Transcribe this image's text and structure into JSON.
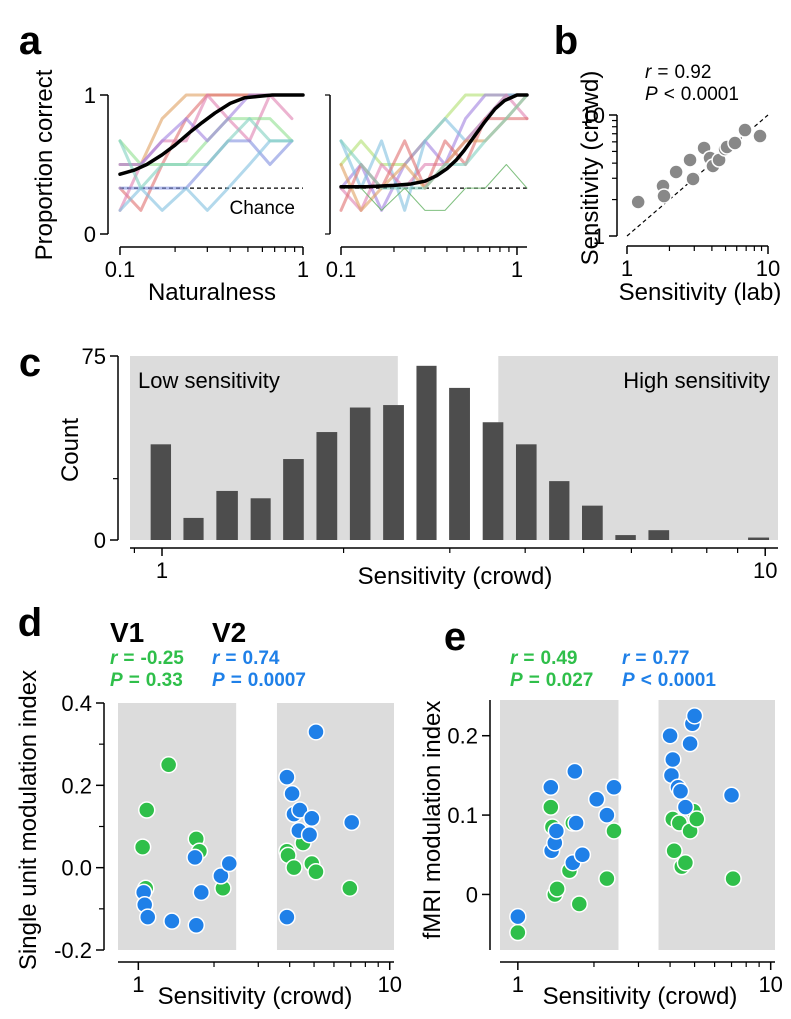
{
  "chart_data": [
    {
      "type": "line",
      "label": "a",
      "ylabel": "Proportion correct",
      "xlabel": "Naturalness",
      "xscale": "log",
      "xlim": [
        0.1,
        1
      ],
      "ylim": [
        0,
        1
      ],
      "xticks": [
        0.1,
        1
      ],
      "yticks": [
        0,
        1
      ],
      "minor_xticks": [
        0.2,
        0.3,
        0.4,
        0.5,
        0.6,
        0.7,
        0.8,
        0.9
      ],
      "chance": 0.33,
      "chance_label": "Chance",
      "x": [
        0.1,
        0.13,
        0.17,
        0.23,
        0.3,
        0.39,
        0.51,
        0.66,
        0.87
      ],
      "series": [
        {
          "color": "#e0a060",
          "opacity": 0.6,
          "values": [
            0.5,
            0.5,
            0.83,
            1,
            1,
            1,
            1,
            1,
            1
          ]
        },
        {
          "color": "#e07070",
          "opacity": 0.6,
          "values": [
            0.33,
            0.17,
            0.5,
            0.83,
            1,
            1,
            1,
            1,
            1
          ]
        },
        {
          "color": "#e080b0",
          "opacity": 0.6,
          "values": [
            0.17,
            0.5,
            0.67,
            0.67,
            1,
            0.83,
            0.67,
            1,
            0.83
          ]
        },
        {
          "color": "#90e090",
          "opacity": 0.6,
          "values": [
            0.67,
            0.5,
            0.5,
            0.5,
            0.67,
            0.83,
            0.83,
            0.83,
            0.67
          ]
        },
        {
          "color": "#a080e0",
          "opacity": 0.6,
          "values": [
            0.5,
            0.5,
            0.67,
            0.83,
            0.67,
            0.83,
            1,
            1,
            1
          ]
        },
        {
          "color": "#8090e0",
          "opacity": 0.6,
          "values": [
            0.33,
            0.33,
            0.33,
            0.33,
            0.5,
            0.67,
            0.67,
            0.5,
            0.67
          ]
        },
        {
          "color": "#80c0e0",
          "opacity": 0.6,
          "values": [
            0.17,
            0.33,
            0.17,
            0.33,
            0.17,
            0.33,
            0.5,
            0.67,
            0.67
          ]
        },
        {
          "color": "#80d0c0",
          "opacity": 0.6,
          "values": [
            0.67,
            0.33,
            0.5,
            0.5,
            0.5,
            0.67,
            0.83,
            0.67,
            0.67
          ]
        },
        {
          "color": "#000000",
          "width": 3.5,
          "x": [
            0.1,
            0.12,
            0.14,
            0.17,
            0.2,
            0.24,
            0.28,
            0.33,
            0.4,
            0.48,
            0.57,
            0.68,
            0.8,
            1
          ],
          "values": [
            0.43,
            0.46,
            0.5,
            0.57,
            0.64,
            0.73,
            0.8,
            0.87,
            0.94,
            0.98,
            0.99,
            1,
            1,
            1
          ]
        }
      ]
    },
    {
      "type": "line",
      "xscale": "log",
      "xlim": [
        0.1,
        1.14
      ],
      "ylim": [
        0,
        1
      ],
      "xticks": [
        0.1,
        1
      ],
      "minor_yticks": [
        0,
        1
      ],
      "minor_xticks": [
        0.2,
        0.3,
        0.4,
        0.5,
        0.6,
        0.7,
        0.8,
        0.9
      ],
      "chance": 0.33,
      "x": [
        0.1,
        0.13,
        0.17,
        0.23,
        0.3,
        0.39,
        0.51,
        0.66,
        0.87,
        1.14
      ],
      "series": [
        {
          "color": "#b0e070",
          "opacity": 0.6,
          "values": [
            0.5,
            0.67,
            0.5,
            0.5,
            0.67,
            0.83,
            1,
            1,
            1,
            1
          ]
        },
        {
          "color": "#a080e0",
          "opacity": 0.6,
          "values": [
            0.33,
            0.5,
            0.17,
            0.5,
            0.67,
            0.5,
            0.83,
            1,
            1,
            1
          ]
        },
        {
          "color": "#80c0e0",
          "opacity": 0.6,
          "values": [
            0.67,
            0.33,
            0.67,
            0.17,
            0.67,
            0.83,
            0.67,
            0.83,
            1,
            1
          ]
        },
        {
          "color": "#e080b0",
          "opacity": 0.6,
          "values": [
            0.33,
            0.17,
            0.5,
            0.33,
            0.5,
            0.5,
            0.67,
            0.83,
            1,
            0.83
          ]
        },
        {
          "color": "#e07070",
          "opacity": 0.6,
          "values": [
            0.17,
            0.5,
            0.33,
            0.67,
            0.33,
            0.67,
            0.5,
            0.83,
            0.83,
            0.83
          ]
        },
        {
          "color": "#e0a060",
          "opacity": 0.6,
          "values": [
            0.5,
            0.17,
            0.33,
            0.5,
            0.33,
            0.5,
            0.67,
            0.67,
            0.83,
            1
          ]
        },
        {
          "color": "#80d0c0",
          "opacity": 0.6,
          "values": [
            0.67,
            0.5,
            0.33,
            0.33,
            0.33,
            0.5,
            0.5,
            0.67,
            0.83,
            1
          ]
        },
        {
          "color": "#60b060",
          "opacity": 0.8,
          "width": 1,
          "values": [
            0.33,
            0.33,
            0.17,
            0.33,
            0.17,
            0.17,
            0.33,
            0.33,
            0.5,
            0.33
          ]
        },
        {
          "color": "#000000",
          "width": 3.5,
          "x": [
            0.1,
            0.14,
            0.2,
            0.25,
            0.3,
            0.35,
            0.4,
            0.45,
            0.5,
            0.57,
            0.65,
            0.75,
            0.85,
            1,
            1.14
          ],
          "values": [
            0.34,
            0.34,
            0.35,
            0.36,
            0.38,
            0.42,
            0.47,
            0.53,
            0.6,
            0.7,
            0.8,
            0.9,
            0.96,
            1,
            1
          ]
        }
      ]
    },
    {
      "type": "scatter",
      "label": "b",
      "ylabel": "Sensitivity (crowd)",
      "xlabel": "Sensitivity (lab)",
      "xscale": "log",
      "yscale": "log",
      "xlim": [
        1,
        10
      ],
      "ylim": [
        1,
        10
      ],
      "xticks": [
        1,
        10
      ],
      "yticks": [
        1,
        10
      ],
      "minor_xticks": [
        2,
        3,
        4,
        5,
        6,
        7,
        8,
        9
      ],
      "minor_yticks": [
        2,
        3,
        4,
        5,
        6,
        7,
        8,
        9
      ],
      "identity_line": true,
      "stats": [
        {
          "symbol": "r",
          "relation": "=",
          "value": 0.92
        },
        {
          "symbol": "P",
          "relation": "<",
          "value": 0.0001
        }
      ],
      "series": [
        {
          "color": "#888888",
          "x": [
            1.2,
            1.8,
            1.83,
            2.23,
            2.8,
            2.94,
            3.52,
            3.88,
            4.07,
            4.5,
            4.96,
            5.12,
            5.83,
            6.87,
            8.78
          ],
          "values": [
            1.91,
            2.59,
            2.14,
            3.38,
            4.25,
            2.96,
            5.34,
            4.41,
            3.79,
            4.25,
            5.24,
            5.44,
            5.87,
            7.51,
            6.7
          ]
        }
      ]
    },
    {
      "type": "histogram",
      "label": "c",
      "ylabel": "Count",
      "xlabel": "Sensitivity (crowd)",
      "xscale": "log",
      "xlim": [
        0.885,
        10.5
      ],
      "ylim": [
        0,
        75
      ],
      "xticks": [
        1,
        10
      ],
      "yticks": [
        0,
        75
      ],
      "minor_yticks": [
        25
      ],
      "minor_xticks": [
        0.9,
        2,
        3,
        4,
        5,
        6,
        7,
        8,
        9
      ],
      "color": "#4d4d4d",
      "region_color": "#dcdcdc",
      "regions": [
        {
          "label": "Low sensitivity",
          "range": [
            0.885,
            2.46
          ]
        },
        {
          "label": "High sensitivity",
          "range": [
            3.61,
            10.5
          ]
        }
      ],
      "bins": [
        0.935,
        1.06,
        1.2,
        1.37,
        1.55,
        1.76,
        2,
        2.27,
        2.58,
        2.92,
        3.32,
        3.77,
        4.28,
        4.85,
        5.51,
        6.25,
        7.1,
        8.05,
        9.14,
        10.4
      ],
      "values": [
        39,
        9,
        20,
        17,
        33,
        44,
        54,
        55,
        71,
        62,
        48,
        39,
        24,
        14,
        2,
        4,
        0,
        0,
        1
      ]
    },
    {
      "type": "scatter",
      "label": "d",
      "ylabel": "Single unit modulation index",
      "xlabel": "Sensitivity (crowd)",
      "xscale": "log",
      "xlim": [
        0.83,
        10.4
      ],
      "ylim": [
        -0.2,
        0.4
      ],
      "xticks": [
        1,
        10
      ],
      "yticks": [
        -0.2,
        {
          "value": 0,
          "label": "0.0"
        },
        0.2,
        0.4
      ],
      "minor_yticks": [
        -0.1,
        0.1,
        0.3
      ],
      "minor_xticks": [
        2,
        3,
        4,
        5,
        6,
        7,
        8,
        9
      ],
      "region_color": "#dcdcdc",
      "regions": [
        {
          "range": [
            0.83,
            2.45
          ]
        },
        {
          "range": [
            3.56,
            10.4
          ]
        }
      ],
      "series": [
        {
          "name": "V1",
          "color": "#2fbf4a",
          "stats": [
            {
              "symbol": "r",
              "relation": "=",
              "value": -0.25
            },
            {
              "symbol": "P",
              "relation": "=",
              "value": 0.33
            }
          ],
          "x": [
            1.07,
            1.04,
            1.08,
            1.32,
            1.7,
            1.75,
            2.17,
            3.9,
            3.94,
            4.16,
            4.52,
            4.9,
            5.09,
            6.94
          ],
          "values": [
            -0.05,
            0.05,
            0.14,
            0.25,
            0.07,
            0.04,
            -0.05,
            0.04,
            0.03,
            0,
            0.06,
            0.01,
            -0.01,
            -0.05
          ]
        },
        {
          "name": "V2",
          "color": "#1f80e8",
          "stats": [
            {
              "symbol": "r",
              "relation": "=",
              "value": 0.74
            },
            {
              "symbol": "P",
              "relation": "=",
              "value": 0.0007
            }
          ],
          "x": [
            1.05,
            1.06,
            1.09,
            1.36,
            1.68,
            1.7,
            1.78,
            2.13,
            2.3,
            3.9,
            3.9,
            4.09,
            4.16,
            4.35,
            4.39,
            4.8,
            4.9,
            5.09,
            7.06
          ],
          "values": [
            -0.06,
            -0.09,
            -0.12,
            -0.13,
            0.025,
            -0.14,
            -0.06,
            -0.02,
            0.01,
            0.22,
            -0.12,
            0.18,
            0.13,
            0.09,
            0.14,
            0.08,
            0.12,
            0.33,
            0.11
          ]
        }
      ]
    },
    {
      "type": "scatter",
      "label": "e",
      "ylabel": "fMRI modulation index",
      "xlabel": "Sensitivity (crowd)",
      "xscale": "log",
      "xlim": [
        0.85,
        10.4
      ],
      "ylim": [
        -0.07,
        0.245
      ],
      "xticks": [
        1,
        10
      ],
      "yticks": [
        0,
        0.1,
        0.2
      ],
      "minor_xticks": [
        2,
        3,
        4,
        5,
        6,
        7,
        8,
        9
      ],
      "region_color": "#dcdcdc",
      "regions": [
        {
          "range": [
            0.85,
            2.5
          ]
        },
        {
          "range": [
            3.6,
            10.4
          ]
        }
      ],
      "series": [
        {
          "color": "#2fbf4a",
          "stats": [
            {
              "symbol": "r",
              "relation": "=",
              "value": 0.49
            },
            {
              "symbol": "P",
              "relation": "=",
              "value": 0.027
            }
          ],
          "x": [
            1,
            1.35,
            1.37,
            1.4,
            1.43,
            1.6,
            1.65,
            1.75,
            2.25,
            2.4,
            4.1,
            4.15,
            4.35,
            4.45,
            4.6,
            4.8,
            4.95,
            5.1,
            7.1
          ],
          "values": [
            -0.048,
            0.11,
            0.085,
            0,
            0.007,
            0.03,
            0.09,
            -0.012,
            0.02,
            0.08,
            0.095,
            0.055,
            0.09,
            0.035,
            0.04,
            0.08,
            0.105,
            0.095,
            0.02
          ]
        },
        {
          "color": "#1f80e8",
          "stats": [
            {
              "symbol": "r",
              "relation": "=",
              "value": 0.77
            },
            {
              "symbol": "P",
              "relation": "<",
              "value": 0.0001
            }
          ],
          "x": [
            1,
            1.35,
            1.36,
            1.4,
            1.42,
            1.65,
            1.68,
            1.7,
            1.8,
            2.05,
            2.25,
            2.4,
            4,
            4.05,
            4.1,
            4.3,
            4.4,
            4.6,
            4.8,
            4.9,
            5,
            7
          ],
          "values": [
            -0.028,
            0.135,
            0.055,
            0.065,
            0.08,
            0.04,
            0.155,
            0.09,
            0.05,
            0.12,
            0.1,
            0.135,
            0.2,
            0.15,
            0.17,
            0.135,
            0.13,
            0.11,
            0.19,
            0.215,
            0.225,
            0.125
          ]
        }
      ]
    }
  ]
}
